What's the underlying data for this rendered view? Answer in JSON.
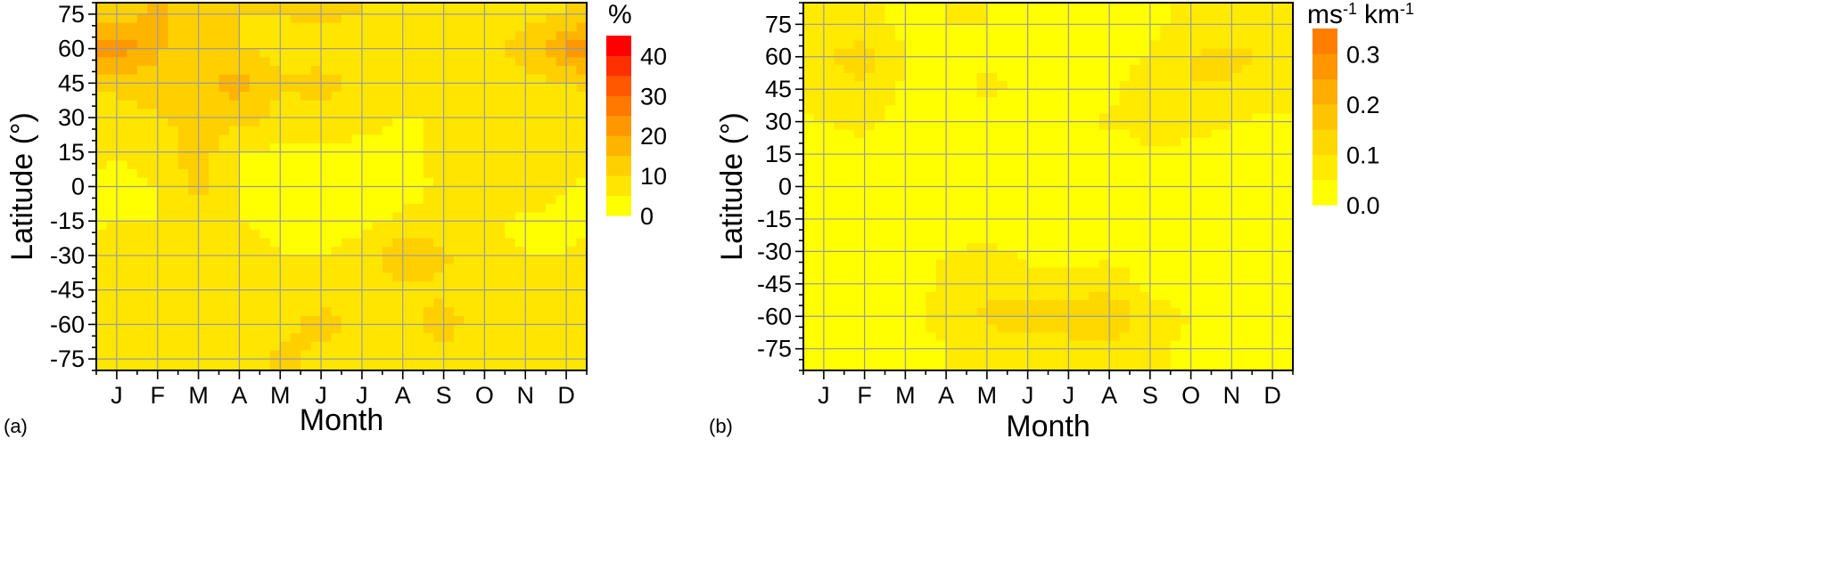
{
  "chart_data": [
    {
      "type": "heatmap",
      "panel_label": "(a)",
      "xlabel": "Month",
      "ylabel": "Latitude (°)",
      "x_ticks": [
        "J",
        "F",
        "M",
        "A",
        "M",
        "J",
        "J",
        "A",
        "S",
        "O",
        "N",
        "D"
      ],
      "y_ticks": [
        "75",
        "60",
        "45",
        "30",
        "15",
        "0",
        "-15",
        "-30",
        "-45",
        "-60",
        "-75"
      ],
      "ylim": [
        -80,
        80
      ],
      "grid": true,
      "colorbar": {
        "unit": "%",
        "ticks": [
          "0",
          "10",
          "20",
          "30",
          "40"
        ],
        "range": [
          0,
          45
        ],
        "levels": [
          {
            "from": 0,
            "color": "#ffff00"
          },
          {
            "from": 5,
            "color": "#ffe600"
          },
          {
            "from": 10,
            "color": "#ffd000"
          },
          {
            "from": 15,
            "color": "#ffb400"
          },
          {
            "from": 20,
            "color": "#ff9800"
          },
          {
            "from": 25,
            "color": "#ff7800"
          },
          {
            "from": 30,
            "color": "#ff5800"
          },
          {
            "from": 35,
            "color": "#ff3000"
          },
          {
            "from": 40,
            "color": "#ff0000"
          }
        ]
      },
      "grid_latitudes": [
        75,
        60,
        45,
        30,
        15,
        0,
        -15,
        -30,
        -45,
        -60,
        -75
      ],
      "values": [
        [
          12,
          16,
          12,
          10,
          10,
          11,
          10,
          8,
          7,
          6,
          8,
          10
        ],
        [
          24,
          16,
          10,
          10,
          9,
          7,
          6,
          5,
          5,
          8,
          12,
          22
        ],
        [
          12,
          12,
          14,
          18,
          10,
          12,
          8,
          6,
          6,
          7,
          8,
          10
        ],
        [
          7,
          10,
          11,
          12,
          9,
          8,
          6,
          5,
          5,
          8,
          9,
          7
        ],
        [
          5,
          6,
          13,
          5,
          4,
          4,
          4,
          4,
          6,
          7,
          8,
          6
        ],
        [
          4,
          5,
          12,
          4,
          3,
          3,
          3,
          3,
          6,
          8,
          8,
          5
        ],
        [
          5,
          5,
          6,
          5,
          4,
          4,
          4,
          6,
          7,
          6,
          4,
          4
        ],
        [
          6,
          7,
          7,
          6,
          5,
          5,
          6,
          14,
          11,
          6,
          5,
          5
        ],
        [
          5,
          6,
          6,
          5,
          6,
          6,
          8,
          9,
          9,
          6,
          5,
          6
        ],
        [
          7,
          6,
          6,
          6,
          8,
          13,
          8,
          7,
          13,
          6,
          6,
          7
        ],
        [
          6,
          5,
          7,
          6,
          12,
          8,
          6,
          6,
          7,
          5,
          6,
          8
        ]
      ]
    },
    {
      "type": "heatmap",
      "panel_label": "(b)",
      "xlabel": "Month",
      "ylabel": "Latitude (°)",
      "x_ticks": [
        "J",
        "F",
        "M",
        "A",
        "M",
        "J",
        "J",
        "A",
        "S",
        "O",
        "N",
        "D"
      ],
      "y_ticks": [
        "75",
        "60",
        "45",
        "30",
        "15",
        "0",
        "-15",
        "-30",
        "-45",
        "-60",
        "-75"
      ],
      "ylim": [
        -85,
        85
      ],
      "grid": true,
      "colorbar": {
        "unit_base": "ms",
        "unit_exp": "-1",
        "unit_base2": "km",
        "unit_exp2": "-1",
        "ticks": [
          "0.0",
          "0.1",
          "0.2",
          "0.3"
        ],
        "range": [
          0,
          0.35
        ],
        "levels": [
          {
            "from": 0.0,
            "color": "#ffff00"
          },
          {
            "from": 0.05,
            "color": "#ffea00"
          },
          {
            "from": 0.1,
            "color": "#ffd800"
          },
          {
            "from": 0.15,
            "color": "#ffc400"
          },
          {
            "from": 0.2,
            "color": "#ffae00"
          },
          {
            "from": 0.25,
            "color": "#ff9600"
          },
          {
            "from": 0.3,
            "color": "#ff7e00"
          }
        ]
      },
      "grid_latitudes": [
        75,
        60,
        45,
        30,
        15,
        0,
        -15,
        -30,
        -45,
        -60,
        -75
      ],
      "values": [
        [
          0.07,
          0.06,
          0.04,
          0.05,
          0.05,
          0.04,
          0.04,
          0.04,
          0.04,
          0.06,
          0.07,
          0.06
        ],
        [
          0.09,
          0.13,
          0.05,
          0.04,
          0.04,
          0.04,
          0.04,
          0.04,
          0.05,
          0.1,
          0.12,
          0.08
        ],
        [
          0.07,
          0.09,
          0.04,
          0.03,
          0.06,
          0.04,
          0.03,
          0.04,
          0.07,
          0.1,
          0.09,
          0.08
        ],
        [
          0.05,
          0.06,
          0.03,
          0.03,
          0.03,
          0.03,
          0.03,
          0.06,
          0.06,
          0.08,
          0.05,
          0.04
        ],
        [
          0.03,
          0.04,
          0.02,
          0.02,
          0.02,
          0.02,
          0.03,
          0.02,
          0.05,
          0.03,
          0.03,
          0.02
        ],
        [
          0.02,
          0.03,
          0.02,
          0.02,
          0.02,
          0.01,
          0.01,
          0.02,
          0.02,
          0.02,
          0.02,
          0.02
        ],
        [
          0.02,
          0.02,
          0.02,
          0.02,
          0.02,
          0.02,
          0.02,
          0.02,
          0.02,
          0.02,
          0.02,
          0.03
        ],
        [
          0.02,
          0.02,
          0.03,
          0.05,
          0.06,
          0.04,
          0.04,
          0.04,
          0.03,
          0.02,
          0.02,
          0.02
        ],
        [
          0.03,
          0.03,
          0.03,
          0.06,
          0.08,
          0.06,
          0.06,
          0.07,
          0.04,
          0.03,
          0.03,
          0.03
        ],
        [
          0.04,
          0.05,
          0.03,
          0.07,
          0.11,
          0.15,
          0.15,
          0.16,
          0.07,
          0.05,
          0.04,
          0.05
        ],
        [
          0.05,
          0.04,
          0.03,
          0.05,
          0.06,
          0.06,
          0.07,
          0.08,
          0.06,
          0.04,
          0.04,
          0.04
        ]
      ]
    }
  ]
}
